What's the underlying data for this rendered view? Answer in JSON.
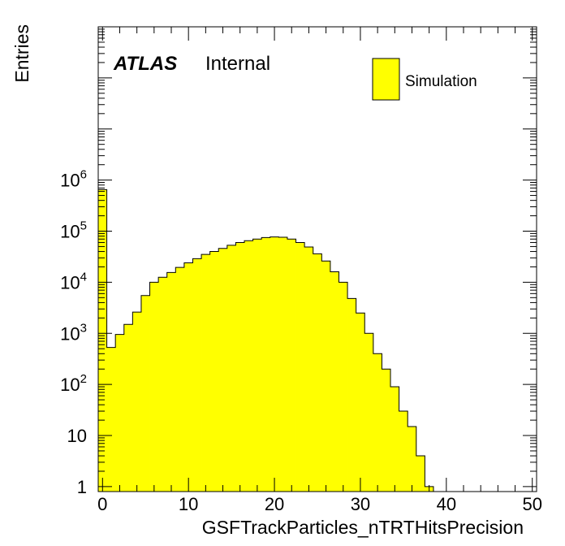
{
  "chart_data": {
    "type": "bar",
    "style": "histogram",
    "xlabel": "GSFTrackParticles_nTRTHitsPrecision",
    "ylabel": "Entries",
    "xlim": [
      -0.5,
      50.5
    ],
    "ylim": [
      0.8,
      1000000000
    ],
    "yscale": "log",
    "bin_width": 1,
    "x_ticks": [
      {
        "value": 0,
        "label": "0"
      },
      {
        "value": 10,
        "label": "10"
      },
      {
        "value": 20,
        "label": "20"
      },
      {
        "value": 30,
        "label": "30"
      },
      {
        "value": 40,
        "label": "40"
      },
      {
        "value": 50,
        "label": "50"
      }
    ],
    "y_ticks": [
      {
        "value": 1,
        "base": "1",
        "exp": ""
      },
      {
        "value": 10,
        "base": "10",
        "exp": ""
      },
      {
        "value": 100,
        "base": "10",
        "exp": "2"
      },
      {
        "value": 1000,
        "base": "10",
        "exp": "3"
      },
      {
        "value": 10000,
        "base": "10",
        "exp": "4"
      },
      {
        "value": 100000,
        "base": "10",
        "exp": "5"
      },
      {
        "value": 1000000,
        "base": "10",
        "exp": "6"
      }
    ],
    "fill_color": "#ffff00",
    "line_color": "#000000",
    "annotations": {
      "experiment": "ATLAS",
      "status": "Internal"
    },
    "legend": {
      "placement": "top-right",
      "entries": [
        "Simulation"
      ]
    },
    "series": [
      {
        "name": "Simulation",
        "bin_centers": [
          0,
          1,
          2,
          3,
          4,
          5,
          6,
          7,
          8,
          9,
          10,
          11,
          12,
          13,
          14,
          15,
          16,
          17,
          18,
          19,
          20,
          21,
          22,
          23,
          24,
          25,
          26,
          27,
          28,
          29,
          30,
          31,
          32,
          33,
          34,
          35,
          36,
          37,
          38,
          39,
          40,
          41,
          42,
          43,
          44,
          45,
          46,
          47,
          48,
          49,
          50
        ],
        "values": [
          650000,
          530,
          950,
          1500,
          2600,
          5500,
          10000,
          12500,
          15500,
          19500,
          24000,
          29000,
          35000,
          40000,
          46000,
          53000,
          60000,
          65000,
          70000,
          75000,
          77000,
          76000,
          70000,
          60000,
          49000,
          36000,
          26000,
          16000,
          10000,
          4800,
          2500,
          1000,
          400,
          200,
          90,
          30,
          15,
          4,
          1,
          0,
          0,
          0,
          0,
          0,
          0,
          0,
          0,
          0,
          0,
          0,
          0
        ]
      }
    ]
  }
}
